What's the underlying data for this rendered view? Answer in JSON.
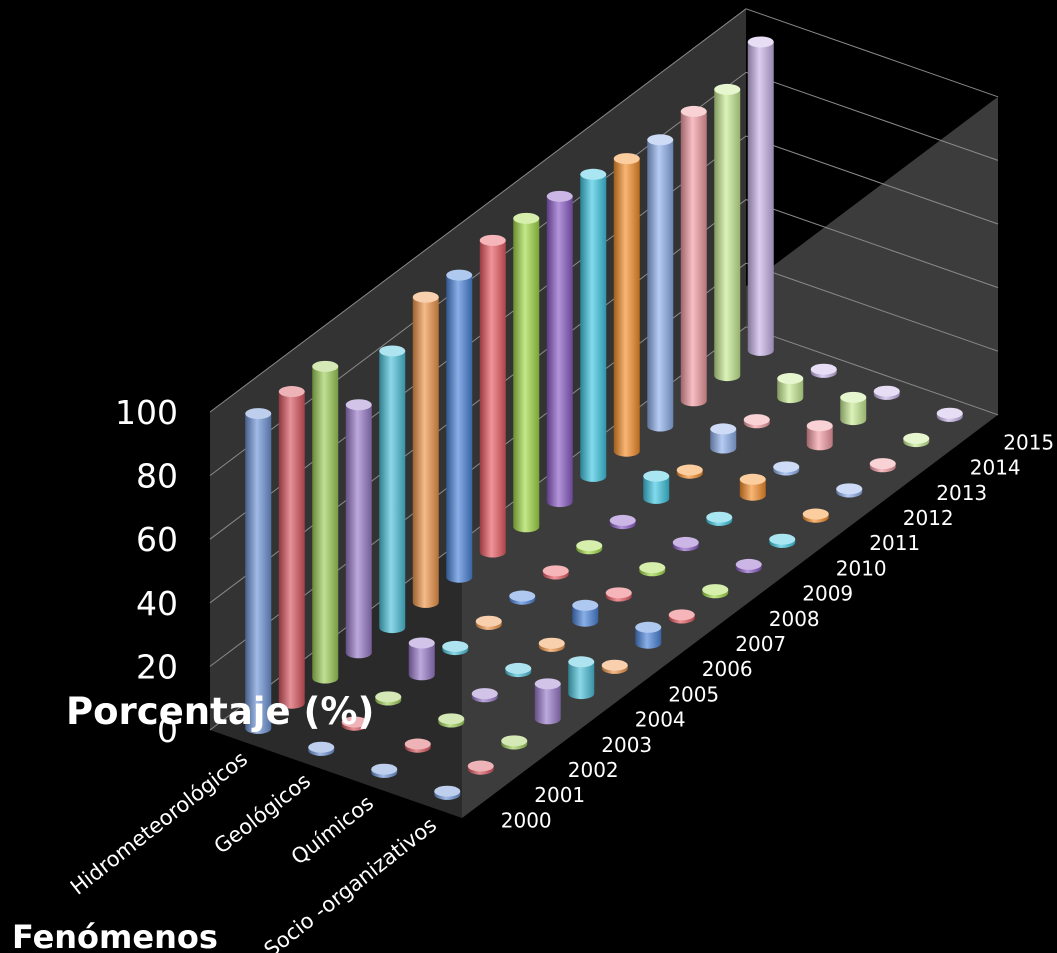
{
  "chart_data": {
    "type": "bar",
    "variant": "3d-cylinder",
    "title": "",
    "ylabel": "Porcentaje (%)",
    "xlabel": "Fenómenos",
    "ylim": [
      0,
      100
    ],
    "yticks": [
      0,
      20,
      40,
      60,
      80,
      100
    ],
    "categories": [
      "Hidrometeorológicos",
      "Geológicos",
      "Químicos",
      "Socio -organizativos"
    ],
    "series": [
      {
        "name": "2000",
        "color": "#6f95d8",
        "values": [
          99,
          1,
          1,
          1
        ]
      },
      {
        "name": "2001",
        "color": "#d9555f",
        "values": [
          98,
          1,
          1,
          1
        ]
      },
      {
        "name": "2002",
        "color": "#9fcf5a",
        "values": [
          98,
          1,
          1,
          1
        ]
      },
      {
        "name": "2003",
        "color": "#9a7acb",
        "values": [
          78,
          1,
          1,
          1
        ]
      },
      {
        "name": "2004",
        "color": "#4cc3db",
        "values": [
          87,
          1,
          1,
          1
        ]
      },
      {
        "name": "2005",
        "color": "#f0964a",
        "values": [
          96,
          1,
          1,
          1
        ]
      },
      {
        "name": "2006",
        "color": "#4b84db",
        "values": [
          95,
          1,
          5,
          1
        ]
      },
      {
        "name": "2007",
        "color": "#e85a63",
        "values": [
          98,
          1,
          1,
          1
        ]
      },
      {
        "name": "2008",
        "color": "#a3db48",
        "values": [
          97,
          1,
          1,
          1
        ]
      },
      {
        "name": "2009",
        "color": "#8c5cc8",
        "values": [
          96,
          1,
          1,
          1
        ]
      },
      {
        "name": "2010",
        "color": "#3fc8e3",
        "values": [
          95,
          1,
          1,
          1
        ]
      },
      {
        "name": "2011",
        "color": "#f68f2a",
        "values": [
          92,
          1,
          5,
          1
        ]
      },
      {
        "name": "2012",
        "color": "#8fb0ec",
        "values": [
          90,
          1,
          1,
          1
        ]
      },
      {
        "name": "2013",
        "color": "#f29ca3",
        "values": [
          91,
          1,
          1,
          1
        ]
      },
      {
        "name": "2014",
        "color": "#c8ec94",
        "values": [
          90,
          1,
          1,
          1
        ]
      },
      {
        "name": "2015",
        "color": "#c9b4e8",
        "values": [
          97,
          1,
          1,
          1
        ]
      }
    ],
    "secondary_bars": [
      {
        "series": "2003",
        "category": "Geológicos",
        "value": 10
      },
      {
        "series": "2003",
        "category": "Socio -organizativos",
        "value": 11
      },
      {
        "series": "2004",
        "category": "Socio -organizativos",
        "value": 10
      },
      {
        "series": "2006",
        "category": "Socio -organizativos",
        "value": 5
      },
      {
        "series": "2010",
        "category": "Geológicos",
        "value": 7
      },
      {
        "series": "2012",
        "category": "Geológicos",
        "value": 6
      },
      {
        "series": "2013",
        "category": "Químicos",
        "value": 6
      },
      {
        "series": "2014",
        "category": "Geológicos",
        "value": 6
      },
      {
        "series": "2014",
        "category": "Químicos",
        "value": 7
      }
    ],
    "grid": true,
    "legend": "none"
  }
}
